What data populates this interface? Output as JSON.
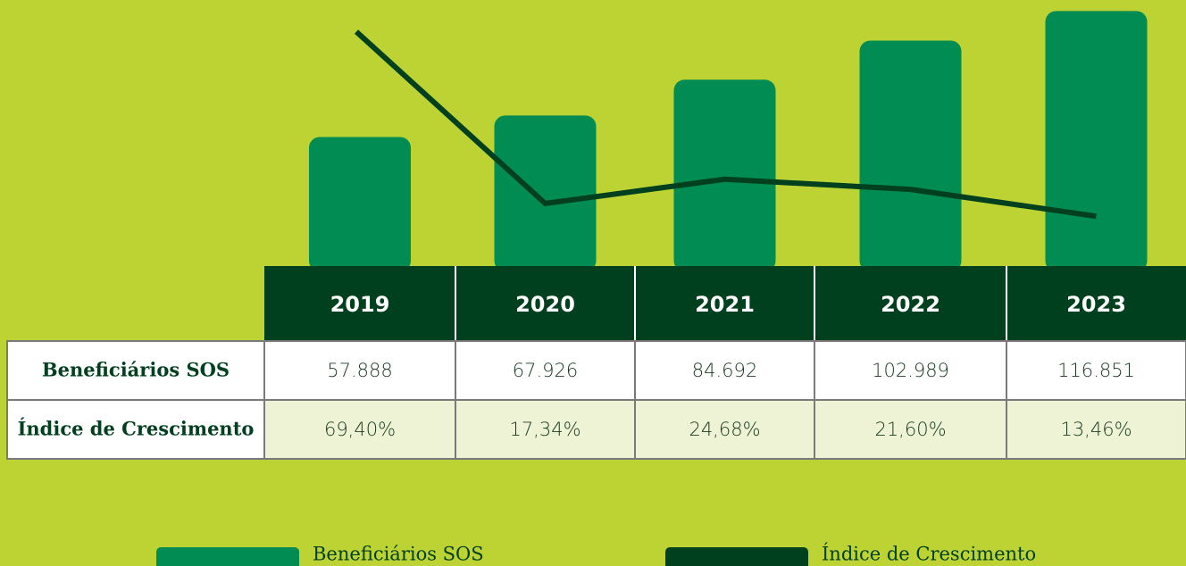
{
  "chart_data": {
    "type": "bar_line_table",
    "categories": [
      "2019",
      "2020",
      "2021",
      "2022",
      "2023"
    ],
    "series": [
      {
        "name": "Beneficiários SOS",
        "color": "#008c52",
        "type": "bar",
        "values": [
          57888,
          67926,
          84692,
          102989,
          116851
        ],
        "value_labels": [
          "57.888",
          "67.926",
          "84.692",
          "102.989",
          "116.851"
        ]
      },
      {
        "name": "Índice de Crescimento",
        "color": "#00401f",
        "type": "line",
        "axis": "y2",
        "values": [
          69.4,
          17.34,
          24.68,
          21.6,
          13.46
        ],
        "value_labels": [
          "69,40%",
          "17,34%",
          "24,68%",
          "21,60%",
          "13,46%"
        ]
      }
    ],
    "ylim": [
      0,
      122000
    ],
    "y2lim": [
      0,
      79
    ]
  }
}
